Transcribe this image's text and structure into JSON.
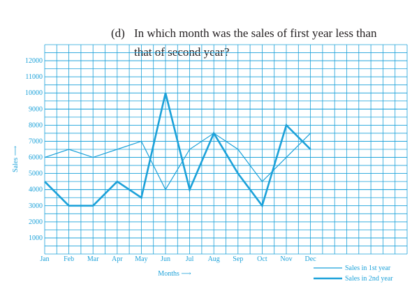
{
  "question": {
    "label": "(d)",
    "lines": [
      "In which month was the sales of first year  less than",
      "that of second year?"
    ]
  },
  "chart_data": {
    "type": "line",
    "categories": [
      "Jan",
      "Feb",
      "Mar",
      "Apr",
      "May",
      "Jun",
      "Jul",
      "Aug",
      "Sep",
      "Oct",
      "Nov",
      "Dec"
    ],
    "series": [
      {
        "name": "Sales in 1st year",
        "color": "#1ba1d9",
        "values": [
          6000,
          6500,
          6000,
          6500,
          7000,
          4000,
          6500,
          7500,
          6500,
          4500,
          6000,
          7500
        ]
      },
      {
        "name": "Sales in 2nd year",
        "color": "#1ba1d9",
        "values": [
          4500,
          3000,
          3000,
          4500,
          3500,
          10000,
          4000,
          7500,
          5000,
          3000,
          8000,
          6500
        ]
      }
    ],
    "x_label": "Months ⟶",
    "y_label": "Sales ⟶",
    "ylim": [
      0,
      13000
    ],
    "yticks": [
      1000,
      2000,
      3000,
      4000,
      5000,
      6000,
      7000,
      8000,
      9000,
      10000,
      11000,
      12000
    ],
    "grid": true
  }
}
